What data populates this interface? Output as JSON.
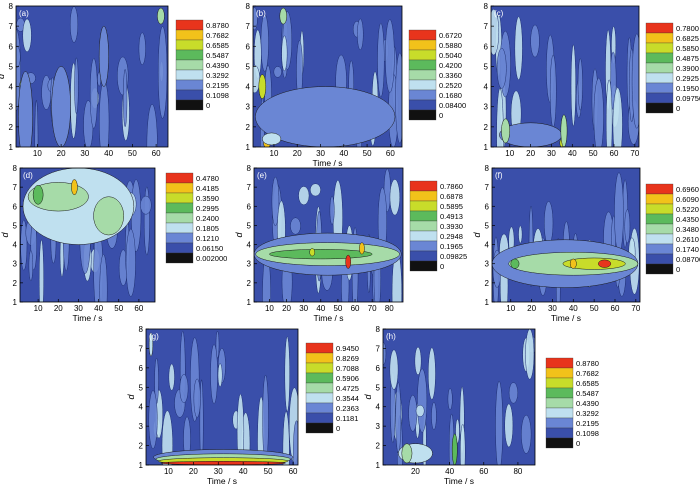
{
  "page": {
    "background": "#ffffff"
  },
  "palette": {
    "plot_bg": "#3a4faa",
    "band1": "#6a86d4",
    "band2": "#bfe0ef",
    "band3": "#a6dba8",
    "band4": "#5cba5c",
    "band5": "#c8dc2a",
    "band6": "#f2c21a",
    "band7": "#e8341c",
    "black": "#111111"
  },
  "chart_data": [
    {
      "type": "heatmap",
      "panel_label": "(a)",
      "xlabel": "",
      "ylabel": "d",
      "xlim": [
        1,
        65
      ],
      "ylim": [
        1,
        8
      ],
      "xticks": [
        10,
        20,
        30,
        40,
        50,
        60
      ],
      "yticks": [
        1,
        2,
        3,
        4,
        5,
        6,
        7,
        8
      ],
      "legend_levels": [
        "0.8780",
        "0.7682",
        "0.6585",
        "0.5487",
        "0.4390",
        "0.3292",
        "0.2195",
        "0.1098",
        "0"
      ],
      "features": [
        {
          "x": 4,
          "y": 4.0,
          "w": 3,
          "h": 0.8,
          "level": 3
        },
        {
          "x": 5,
          "y": 2.5,
          "w": 6,
          "h": 4.5,
          "level": 1
        },
        {
          "x": 62,
          "y": 7.5,
          "w": 3,
          "h": 0.8,
          "level": 3
        },
        {
          "x": 20,
          "y": 3.0,
          "w": 8,
          "h": 4,
          "level": 1
        },
        {
          "x": 38,
          "y": 5.5,
          "w": 4,
          "h": 3,
          "level": 1
        }
      ]
    },
    {
      "type": "heatmap",
      "panel_label": "(b)",
      "xlabel": "Time / s",
      "ylabel": "",
      "xlim": [
        1,
        65
      ],
      "ylim": [
        1,
        8
      ],
      "xticks": [
        10,
        20,
        30,
        40,
        50,
        60
      ],
      "yticks": [
        1,
        2,
        3,
        4,
        5,
        6,
        7,
        8
      ],
      "legend_levels": [
        "0.6720",
        "0.5880",
        "0.5040",
        "0.4200",
        "0.3360",
        "0.2520",
        "0.1680",
        "0.08400",
        "0"
      ],
      "features": [
        {
          "x": 32,
          "y": 2.5,
          "w": 60,
          "h": 3,
          "level": 1
        },
        {
          "x": 5,
          "y": 4.0,
          "w": 3,
          "h": 1.2,
          "level": 5
        },
        {
          "x": 7,
          "y": 1.2,
          "w": 3,
          "h": 0.5,
          "level": 6
        },
        {
          "x": 9,
          "y": 1.4,
          "w": 8,
          "h": 0.6,
          "level": 2
        },
        {
          "x": 14,
          "y": 7.5,
          "w": 3,
          "h": 0.8,
          "level": 3
        }
      ]
    },
    {
      "type": "heatmap",
      "panel_label": "(c)",
      "xlabel": "",
      "ylabel": "",
      "xlim": [
        1,
        72
      ],
      "ylim": [
        1,
        8
      ],
      "xticks": [
        10,
        20,
        30,
        40,
        50,
        60,
        70
      ],
      "yticks": [
        1,
        2,
        3,
        4,
        5,
        6,
        7,
        8
      ],
      "legend_levels": [
        "0.7800",
        "0.6825",
        "0.5850",
        "0.4875",
        "0.3900",
        "0.2925",
        "0.1950",
        "0.09750",
        "0"
      ],
      "features": [
        {
          "x": 35,
          "y": 1.2,
          "w": 2,
          "h": 0.4,
          "level": 5
        },
        {
          "x": 20,
          "y": 1.6,
          "w": 30,
          "h": 1.2,
          "level": 1
        },
        {
          "x": 8,
          "y": 1.8,
          "w": 4,
          "h": 1.2,
          "level": 3
        },
        {
          "x": 36,
          "y": 1.8,
          "w": 3,
          "h": 1.6,
          "level": 3
        }
      ]
    },
    {
      "type": "heatmap",
      "panel_label": "(d)",
      "xlabel": "Time / s",
      "ylabel": "d",
      "xlim": [
        1,
        68
      ],
      "ylim": [
        1,
        8
      ],
      "xticks": [
        10,
        20,
        30,
        40,
        50,
        60
      ],
      "yticks": [
        1,
        2,
        3,
        4,
        5,
        6,
        7,
        8
      ],
      "legend_levels": [
        "0.4780",
        "0.4185",
        "0.3590",
        "0.2995",
        "0.2400",
        "0.1805",
        "0.1210",
        "0.06150",
        "0.002000"
      ],
      "features": [
        {
          "x": 30,
          "y": 6.0,
          "w": 55,
          "h": 4,
          "level": 2
        },
        {
          "x": 20,
          "y": 6.5,
          "w": 30,
          "h": 1.5,
          "level": 3
        },
        {
          "x": 28,
          "y": 7.0,
          "w": 3,
          "h": 0.8,
          "level": 6
        },
        {
          "x": 10,
          "y": 6.6,
          "w": 5,
          "h": 1,
          "level": 4
        },
        {
          "x": 45,
          "y": 5.5,
          "w": 15,
          "h": 2,
          "level": 3
        }
      ]
    },
    {
      "type": "heatmap",
      "panel_label": "(e)",
      "xlabel": "Time / s",
      "ylabel": "d",
      "xlim": [
        1,
        88
      ],
      "ylim": [
        1,
        8
      ],
      "xticks": [
        10,
        20,
        30,
        40,
        50,
        60,
        70,
        80
      ],
      "yticks": [
        1,
        2,
        3,
        4,
        5,
        6,
        7,
        8
      ],
      "legend_levels": [
        "0.7860",
        "0.6878",
        "0.5895",
        "0.4913",
        "0.3930",
        "0.2948",
        "0.1965",
        "0.09825",
        "0"
      ],
      "features": [
        {
          "x": 44,
          "y": 3.5,
          "w": 86,
          "h": 2.2,
          "level": 1
        },
        {
          "x": 44,
          "y": 3.5,
          "w": 84,
          "h": 1.2,
          "level": 3
        },
        {
          "x": 40,
          "y": 3.5,
          "w": 60,
          "h": 0.5,
          "level": 4
        },
        {
          "x": 56,
          "y": 3.1,
          "w": 3,
          "h": 0.7,
          "level": 7
        },
        {
          "x": 64,
          "y": 3.8,
          "w": 3,
          "h": 0.6,
          "level": 6
        },
        {
          "x": 35,
          "y": 3.6,
          "w": 3,
          "h": 0.4,
          "level": 5
        }
      ]
    },
    {
      "type": "heatmap",
      "panel_label": "(f)",
      "xlabel": "Time / s",
      "ylabel": "d",
      "xlim": [
        1,
        72
      ],
      "ylim": [
        1,
        8
      ],
      "xticks": [
        10,
        20,
        30,
        40,
        50,
        60,
        70
      ],
      "yticks": [
        1,
        2,
        3,
        4,
        5,
        6,
        7,
        8
      ],
      "legend_levels": [
        "0.6960",
        "0.6090",
        "0.5220",
        "0.4350",
        "0.3480",
        "0.2610",
        "0.1740",
        "0.08700",
        "0"
      ],
      "features": [
        {
          "x": 36,
          "y": 3.0,
          "w": 70,
          "h": 2.5,
          "level": 1
        },
        {
          "x": 40,
          "y": 3.0,
          "w": 62,
          "h": 1.2,
          "level": 3
        },
        {
          "x": 50,
          "y": 3.0,
          "w": 30,
          "h": 0.6,
          "level": 5
        },
        {
          "x": 55,
          "y": 3.0,
          "w": 6,
          "h": 0.4,
          "level": 7
        },
        {
          "x": 40,
          "y": 3.0,
          "w": 3,
          "h": 0.5,
          "level": 6
        },
        {
          "x": 12,
          "y": 3.0,
          "w": 4,
          "h": 0.5,
          "level": 4
        }
      ]
    },
    {
      "type": "heatmap",
      "panel_label": "(g)",
      "xlabel": "Time / s",
      "ylabel": "d",
      "xlim": [
        1,
        62
      ],
      "ylim": [
        1,
        8
      ],
      "xticks": [
        10,
        20,
        30,
        40,
        50,
        60
      ],
      "yticks": [
        1,
        2,
        3,
        4,
        5,
        6,
        7,
        8
      ],
      "legend_levels": [
        "0.9450",
        "0.8269",
        "0.7088",
        "0.5906",
        "0.4725",
        "0.3544",
        "0.2363",
        "0.1181",
        "0"
      ],
      "features": [
        {
          "x": 32,
          "y": 1.4,
          "w": 56,
          "h": 0.8,
          "level": 1
        },
        {
          "x": 32,
          "y": 1.3,
          "w": 54,
          "h": 0.55,
          "level": 3
        },
        {
          "x": 32,
          "y": 1.2,
          "w": 52,
          "h": 0.35,
          "level": 5
        },
        {
          "x": 32,
          "y": 1.1,
          "w": 50,
          "h": 0.18,
          "level": 7
        },
        {
          "x": 3,
          "y": 7.2,
          "w": 1.5,
          "h": 1.2,
          "level": 2
        }
      ]
    },
    {
      "type": "heatmap",
      "panel_label": "(h)",
      "xlabel": "Time / s",
      "ylabel": "d",
      "xlim": [
        1,
        90
      ],
      "ylim": [
        1,
        8
      ],
      "xticks": [
        20,
        40,
        60,
        80
      ],
      "yticks": [
        1,
        2,
        3,
        4,
        5,
        6,
        7,
        8
      ],
      "legend_levels": [
        "0.8780",
        "0.7682",
        "0.6585",
        "0.5487",
        "0.4390",
        "0.3292",
        "0.2195",
        "0.1098",
        "0"
      ],
      "features": [
        {
          "x": 20,
          "y": 1.6,
          "w": 20,
          "h": 1.0,
          "level": 2
        },
        {
          "x": 43,
          "y": 1.8,
          "w": 3,
          "h": 1.6,
          "level": 4
        },
        {
          "x": 15,
          "y": 1.6,
          "w": 6,
          "h": 1,
          "level": 3
        }
      ]
    }
  ]
}
